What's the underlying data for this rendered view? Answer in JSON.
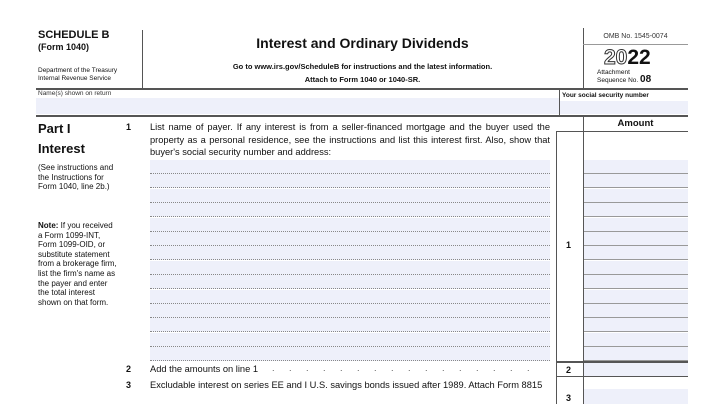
{
  "header": {
    "schedule": "SCHEDULE B",
    "form": "(Form 1040)",
    "dept": "Department of the Treasury",
    "irs": "Internal Revenue Service",
    "title": "Interest and Ordinary Dividends",
    "goto": "Go to www.irs.gov/ScheduleB for instructions and the latest information.",
    "attach": "Attach to Form 1040 or 1040-SR.",
    "omb": "OMB No. 1545-0074",
    "year_outline": "20",
    "year_bold": "22",
    "attachment": "Attachment",
    "sequence": "Sequence No.",
    "sequence_no": "08"
  },
  "names": {
    "name_label": "Name(s) shown on return",
    "ssn_label": "Your social security number"
  },
  "part1": {
    "part": "Part I",
    "title": "Interest",
    "see": "(See instructions and the Instructions for Form 1040, line 2b.)",
    "note_bold": "Note:",
    "note": " If you received a Form 1099-INT, Form 1099-OID, or substitute statement from a brokerage firm, list the firm's name as the payer and enter the total interest shown on that form.",
    "amount_header": "Amount",
    "line1": {
      "num": "1",
      "text": "List name of payer. If any interest is from a seller-financed mortgage and the buyer used the property as a personal residence, see the instructions and list this interest first. Also, show that buyer's social security number and address:",
      "box": "1"
    },
    "line2": {
      "num": "2",
      "text": "Add the amounts on line 1",
      "box": "2"
    },
    "line3": {
      "num": "3",
      "text": "Excludable interest on series EE and I U.S. savings bonds issued after 1989. Attach Form 8815",
      "box": "3"
    }
  }
}
